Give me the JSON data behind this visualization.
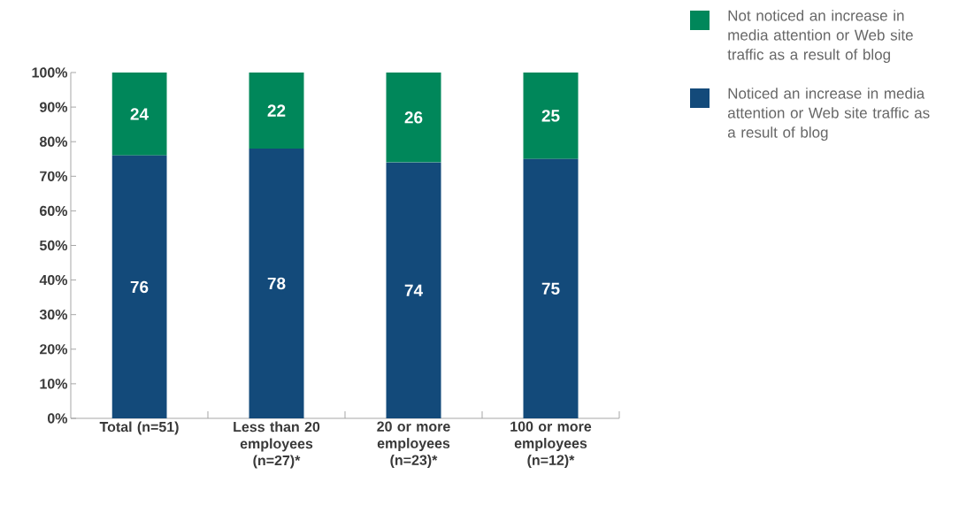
{
  "chart_data": {
    "type": "bar",
    "stacked": true,
    "data_labels": true,
    "legend": "top right",
    "categories": [
      "Total (n=51)",
      "Less than 20 employees (n=27)*",
      "20 or more employees (n=23)*",
      "100 or more employees (n=12)*"
    ],
    "series": [
      {
        "name": "Noticed an increase in media attention or Web site traffic as a result of blog",
        "color": "#134a7a",
        "values": [
          76,
          78,
          74,
          75
        ]
      },
      {
        "name": "Not noticed an increase in media attention or Web site traffic as a result of blog",
        "color": "#00875a",
        "values": [
          24,
          22,
          26,
          25
        ]
      }
    ],
    "ylim": [
      0,
      100
    ],
    "yticks": [
      {
        "value": 0,
        "label": "0%"
      },
      {
        "value": 10,
        "label": "10%"
      },
      {
        "value": 20,
        "label": "20%"
      },
      {
        "value": 30,
        "label": "30%"
      },
      {
        "value": 40,
        "label": "40%"
      },
      {
        "value": 50,
        "label": "50%"
      },
      {
        "value": 60,
        "label": "60%"
      },
      {
        "value": 70,
        "label": "70%"
      },
      {
        "value": 80,
        "label": "80%"
      },
      {
        "value": 90,
        "label": "90%"
      },
      {
        "value": 100,
        "label": "100%"
      }
    ]
  }
}
